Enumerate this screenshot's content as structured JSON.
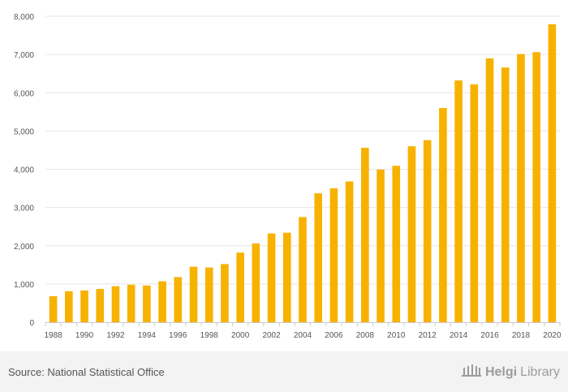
{
  "chart_data": {
    "type": "bar",
    "categories": [
      "1988",
      "1989",
      "1990",
      "1991",
      "1992",
      "1993",
      "1994",
      "1995",
      "1996",
      "1997",
      "1998",
      "1999",
      "2000",
      "2001",
      "2002",
      "2003",
      "2004",
      "2005",
      "2006",
      "2007",
      "2008",
      "2009",
      "2010",
      "2011",
      "2012",
      "2013",
      "2014",
      "2015",
      "2016",
      "2017",
      "2018",
      "2019",
      "2020"
    ],
    "x_tick_labels": [
      "1988",
      "1990",
      "1992",
      "1994",
      "1996",
      "1998",
      "2000",
      "2002",
      "2004",
      "2006",
      "2008",
      "2010",
      "2012",
      "2014",
      "2016",
      "2018",
      "2020"
    ],
    "values": [
      680,
      810,
      830,
      870,
      940,
      980,
      960,
      1070,
      1180,
      1450,
      1430,
      1520,
      1820,
      2060,
      2320,
      2340,
      2750,
      3370,
      3500,
      3680,
      4560,
      3990,
      4090,
      4600,
      4760,
      5600,
      6320,
      6220,
      6900,
      6660,
      7010,
      7060,
      7790
    ],
    "y_ticks": [
      "0",
      "1,000",
      "2,000",
      "3,000",
      "4,000",
      "5,000",
      "6,000",
      "7,000",
      "8,000"
    ],
    "ylim": [
      0,
      8000
    ],
    "title": "",
    "xlabel": "",
    "ylabel": "",
    "grid": true,
    "colors": {
      "bar": "#f7b200",
      "grid": "#e6e6e6",
      "axis": "#cccccc",
      "tick_text": "#555555"
    }
  },
  "footer": {
    "source": "Source: National Statistical Office",
    "logo_bold": "Helgi",
    "logo_light": "Library",
    "logo_icon": "library-building-icon"
  }
}
